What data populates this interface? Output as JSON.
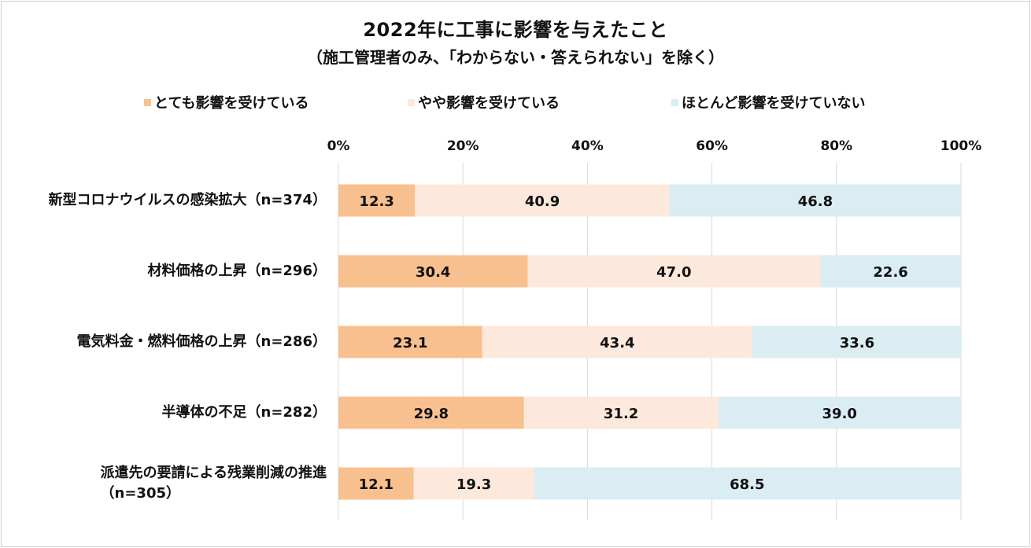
{
  "chart_data": {
    "type": "bar",
    "orientation": "horizontal",
    "stacked": true,
    "title": "2022年に工事に影響を与えたこと",
    "subtitle": "（施工管理者のみ、「わからない・答えられない」を除く）",
    "categories": [
      "新型コロナウイルスの感染拡大（n=374）",
      "材料価格の上昇（n=296）",
      "電気料金・燃料価格の上昇（n=286）",
      "半導体の不足（n=282）",
      "派遣先の要請による残業削減の推進（n=305）"
    ],
    "category_lines": [
      [
        "新型コロナウイルスの感染拡大（n=374）"
      ],
      [
        "材料価格の上昇（n=296）"
      ],
      [
        "電気料金・燃料価格の上昇（n=286）"
      ],
      [
        "半導体の不足（n=282）"
      ],
      [
        "派遣先の要請による残業削減の推進",
        "（n=305）"
      ]
    ],
    "series": [
      {
        "name": "とても影響を受けている",
        "color": "#f8c08f",
        "values": [
          12.3,
          30.4,
          23.1,
          29.8,
          12.1
        ]
      },
      {
        "name": "やや影響を受けている",
        "color": "#fde9dc",
        "values": [
          40.9,
          47.0,
          43.4,
          31.2,
          19.3
        ]
      },
      {
        "name": "ほとんど影響を受けていない",
        "color": "#daedf2",
        "values": [
          46.8,
          22.6,
          33.6,
          39.0,
          68.5
        ]
      }
    ],
    "value_labels": [
      [
        "12.3",
        "40.9",
        "46.8"
      ],
      [
        "30.4",
        "47.0",
        "22.6"
      ],
      [
        "23.1",
        "43.4",
        "33.6"
      ],
      [
        "29.8",
        "31.2",
        "39.0"
      ],
      [
        "12.1",
        "19.3",
        "68.5"
      ]
    ],
    "xlim": [
      0,
      100
    ],
    "xticks": [
      "0%",
      "20%",
      "40%",
      "60%",
      "80%",
      "100%"
    ],
    "grid": true,
    "legend_position": "top"
  }
}
